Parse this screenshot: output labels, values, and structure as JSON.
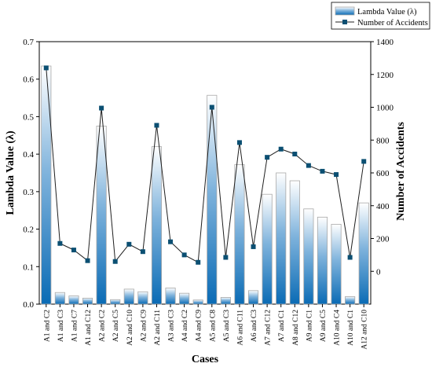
{
  "chart_data": {
    "type": "bar",
    "xlabel": "Cases",
    "ylabel_left": "Lambda Value (λ)",
    "ylabel_right": "Number of Accidents",
    "ylim_left": [
      0,
      0.7
    ],
    "ylim_right": [
      -200,
      1400
    ],
    "yticks_left": [
      "0.0",
      "0.1",
      "0.2",
      "0.3",
      "0.4",
      "0.5",
      "0.6",
      "0.7"
    ],
    "yticks_right": [
      "0",
      "200",
      "400",
      "600",
      "800",
      "1000",
      "1200",
      "1400"
    ],
    "legend_position": "top-right",
    "categories": [
      "A1 and C2",
      "A1 and C3",
      "A1 and C7",
      "A1 and C12",
      "A2 and C2",
      "A2 and C5",
      "A2 and C10",
      "A2 and C9",
      "A2 and C11",
      "A3 and C3",
      "A4 and C2",
      "A4 and C9",
      "A5 and C8",
      "A5 and C3",
      "A6 and C11",
      "A6 and C3",
      "A7 and C12",
      "A7 and C1",
      "A8 and C12",
      "A9 and C1",
      "A9 and C5",
      "A10 and C4",
      "A10 and C1",
      "A12 and C10"
    ],
    "series": [
      {
        "name": "Lambda Value (λ)",
        "type": "bar",
        "axis": "left",
        "values": [
          0.635,
          0.031,
          0.022,
          0.016,
          0.475,
          0.012,
          0.04,
          0.033,
          0.42,
          0.043,
          0.029,
          0.011,
          0.557,
          0.018,
          0.372,
          0.036,
          0.293,
          0.35,
          0.329,
          0.254,
          0.232,
          0.213,
          0.02,
          0.27
        ]
      },
      {
        "name": "Number of Accidents",
        "type": "line",
        "axis": "right",
        "values": [
          1240,
          170,
          130,
          65,
          995,
          60,
          165,
          120,
          890,
          180,
          100,
          55,
          1000,
          85,
          785,
          150,
          695,
          745,
          715,
          645,
          610,
          590,
          85,
          670
        ]
      }
    ]
  },
  "colors": {
    "bar_bottom": "#0a6bb5",
    "bar_top": "#ffffff",
    "bar_edge": "#a9a9a9",
    "line": "#1f1f1f",
    "marker": "#0b4f72"
  }
}
